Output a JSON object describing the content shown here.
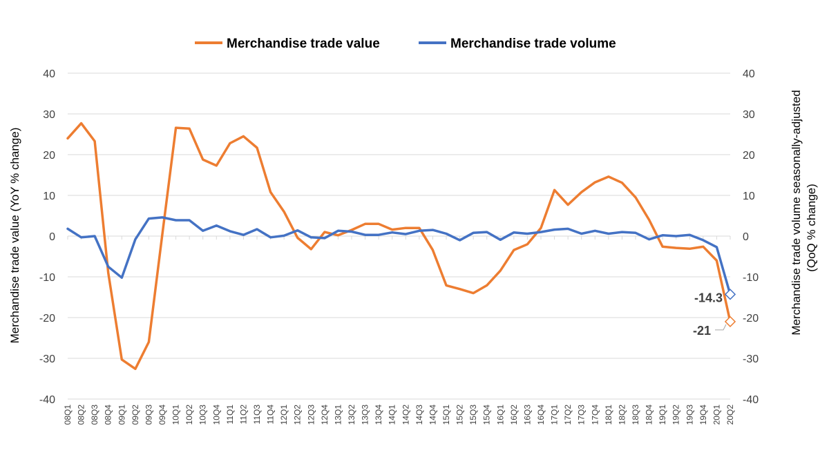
{
  "chart_data": {
    "type": "line",
    "categories": [
      "08Q1",
      "08Q2",
      "08Q3",
      "08Q4",
      "09Q1",
      "09Q2",
      "09Q3",
      "09Q4",
      "10Q1",
      "10Q2",
      "10Q3",
      "10Q4",
      "11Q1",
      "11Q2",
      "11Q3",
      "11Q4",
      "12Q1",
      "12Q2",
      "12Q3",
      "12Q4",
      "13Q1",
      "13Q2",
      "13Q3",
      "13Q4",
      "14Q1",
      "14Q2",
      "14Q3",
      "14Q4",
      "15Q1",
      "15Q2",
      "15Q3",
      "15Q4",
      "16Q1",
      "16Q2",
      "16Q3",
      "16Q4",
      "17Q1",
      "17Q2",
      "17Q3",
      "17Q4",
      "18Q1",
      "18Q2",
      "18Q3",
      "18Q4",
      "19Q1",
      "19Q2",
      "19Q3",
      "19Q4",
      "20Q1",
      "20Q2"
    ],
    "series": [
      {
        "name": "Merchandise trade value",
        "axis": "left",
        "color": "#ED7D31",
        "values": [
          24,
          27.7,
          23.3,
          -9,
          -30.3,
          -32.6,
          -26,
          0.5,
          26.6,
          26.4,
          18.8,
          17.3,
          22.8,
          24.5,
          21.7,
          10.8,
          6,
          -0.4,
          -3.2,
          1,
          0.2,
          1.5,
          3,
          3,
          1.6,
          2,
          2,
          -3.4,
          -12.1,
          -13,
          -14,
          -12.1,
          -8.5,
          -3.4,
          -2,
          2,
          11.3,
          7.7,
          10.8,
          13.2,
          14.6,
          13.1,
          9.5,
          4,
          -2.6,
          -2.9,
          -3.1,
          -2.6,
          -6,
          -21
        ]
      },
      {
        "name": "Merchandise trade volume",
        "axis": "right",
        "color": "#4472C4",
        "values": [
          1.8,
          -0.3,
          0,
          -7.5,
          -10.2,
          -0.8,
          4.3,
          4.6,
          3.9,
          3.9,
          1.3,
          2.6,
          1.2,
          0.3,
          1.7,
          -0.3,
          0.1,
          1.4,
          -0.3,
          -0.5,
          1.3,
          1.1,
          0.3,
          0.3,
          0.9,
          0.5,
          1.3,
          1.5,
          0.6,
          -1,
          0.8,
          1,
          -0.9,
          0.9,
          0.6,
          1,
          1.6,
          1.8,
          0.6,
          1.3,
          0.6,
          1,
          0.8,
          -0.8,
          0.2,
          0,
          0.3,
          -1,
          -2.7,
          -14.3
        ]
      }
    ],
    "annotations": [
      {
        "series": 1,
        "index": 49,
        "label": "-14.3"
      },
      {
        "series": 0,
        "index": 49,
        "label": "-21"
      }
    ],
    "ylabel": "Merchandise trade value (YoY % change)",
    "y2label": "Merchandise trade volume seasonally-adjusted (QoQ % change)",
    "y2label_lines": [
      "Merchandise trade volume seasonally-adjusted",
      "(QoQ % change)"
    ],
    "ylim": [
      -40,
      40
    ],
    "y2lim": [
      -40,
      40
    ],
    "yticks": [
      "40",
      "30",
      "20",
      "10",
      "0",
      "-10",
      "-20",
      "-30",
      "-40"
    ],
    "grid": true,
    "legend": "top-center"
  }
}
